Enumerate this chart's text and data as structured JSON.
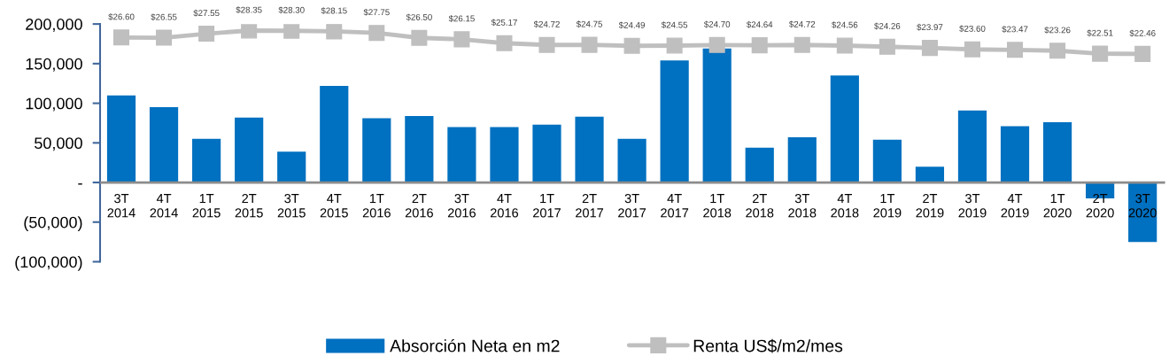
{
  "chart_data": {
    "type": "bar",
    "categories": [
      "3T\n2014",
      "4T\n2014",
      "1T\n2015",
      "2T\n2015",
      "3T\n2015",
      "4T\n2015",
      "1T\n2016",
      "2T\n2016",
      "3T\n2016",
      "4T\n2016",
      "1T\n2017",
      "2T\n2017",
      "3T\n2017",
      "4T\n2017",
      "1T\n2018",
      "2T\n2018",
      "3T\n2018",
      "4T\n2018",
      "1T\n2019",
      "2T\n2019",
      "3T\n2019",
      "4T\n2019",
      "1T\n2020",
      "2T\n2020",
      "3T\n2020"
    ],
    "series": [
      {
        "name": "Absorción Neta en m2",
        "color": "#0070c0",
        "values": [
          110000,
          95000,
          55000,
          82000,
          39000,
          122000,
          81000,
          84000,
          70000,
          70000,
          73000,
          83000,
          55000,
          154000,
          169000,
          44000,
          57000,
          135000,
          54000,
          20000,
          91000,
          71000,
          76000,
          -20000,
          -75000
        ]
      },
      {
        "name": "Renta US$/m2/mes",
        "type": "line",
        "axis": "y2",
        "color": "#bfbfbf",
        "marker": "square",
        "line_style": "solid",
        "values": [
          26.6,
          26.55,
          27.55,
          28.35,
          28.3,
          28.15,
          27.75,
          26.5,
          26.15,
          25.17,
          24.72,
          24.75,
          24.49,
          24.55,
          24.7,
          24.64,
          24.72,
          24.56,
          24.26,
          23.97,
          23.6,
          23.47,
          23.26,
          22.51,
          22.46
        ],
        "value_labels": [
          "$26.60",
          "$26.55",
          "$27.55",
          "$28.35",
          "$28.30",
          "$28.15",
          "$27.75",
          "$26.50",
          "$26.15",
          "$25.17",
          "$24.72",
          "$24.75",
          "$24.49",
          "$24.55",
          "$24.70",
          "$24.64",
          "$24.72",
          "$24.56",
          "$24.26",
          "$23.97",
          "$23.60",
          "$23.47",
          "$23.26",
          "$22.51",
          "$22.46"
        ]
      }
    ],
    "ylim": [
      -100000,
      200000
    ],
    "yticks": [
      {
        "value": -100000,
        "label": "(100,000)"
      },
      {
        "value": -50000,
        "label": "(50,000)"
      },
      {
        "value": 0,
        "label": "-"
      },
      {
        "value": 50000,
        "label": "50,000"
      },
      {
        "value": 100000,
        "label": "100,000"
      },
      {
        "value": 150000,
        "label": "150,000"
      },
      {
        "value": 200000,
        "label": "200,000"
      }
    ],
    "y2lim": [
      -30,
      30
    ],
    "tick_labels": "xy",
    "legend": "bottom"
  }
}
